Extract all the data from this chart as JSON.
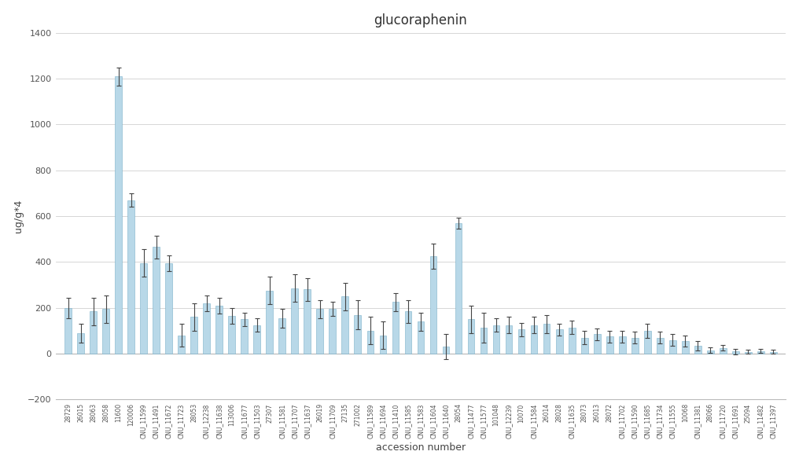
{
  "title": "glucoraphenin",
  "xlabel": "accession number",
  "ylabel": "ug/g*4",
  "ylim": [
    -200,
    1400
  ],
  "yticks": [
    -200,
    0,
    200,
    400,
    600,
    800,
    1000,
    1200,
    1400
  ],
  "bar_color": "#b8d8e8",
  "bar_edge_color": "#7ab0c8",
  "error_color": "#444444",
  "background_color": "#ffffff",
  "categories": [
    "28729",
    "26015",
    "28063",
    "28058",
    "11600",
    "120006",
    "CNU_11599",
    "CNU_11491",
    "CNU_11672",
    "CNU_11723",
    "28053",
    "CNU_12238",
    "CNU_11638",
    "113006",
    "CNU_11677",
    "CNU_11503",
    "27307",
    "CNU_11581",
    "CNU_11707",
    "CNU_11637",
    "26019",
    "CNU_11709",
    "27135",
    "271002",
    "CNU_11589",
    "CNU_11694",
    "CNU_11410",
    "CNU_11585",
    "CNU_11583",
    "CNU_11604",
    "CNU_11640",
    "28054",
    "CNU_11477",
    "CNU_11577",
    "101048",
    "CNU_12239",
    "10070",
    "CNU_11584",
    "26014",
    "28028",
    "CNU_11635",
    "28073",
    "26013",
    "28072",
    "CNU_11702",
    "CNU_11590",
    "CNU_11685",
    "CNU_11734",
    "CNU_11555",
    "10068",
    "CNU_11381",
    "28066",
    "CNU_11720",
    "CNU_11691",
    "25094",
    "CNU_11482",
    "CNU_11397"
  ],
  "values": [
    200,
    90,
    185,
    195,
    1210,
    670,
    395,
    465,
    395,
    80,
    160,
    220,
    210,
    165,
    150,
    125,
    275,
    155,
    285,
    280,
    195,
    195,
    250,
    170,
    100,
    80,
    225,
    185,
    140,
    425,
    30,
    570,
    150,
    115,
    125,
    125,
    105,
    125,
    130,
    105,
    115,
    70,
    85,
    75,
    75,
    70,
    100,
    70,
    60,
    55,
    35,
    15,
    25,
    10,
    8,
    12,
    8
  ],
  "errors": [
    45,
    40,
    60,
    60,
    40,
    30,
    60,
    50,
    35,
    50,
    60,
    35,
    35,
    35,
    30,
    30,
    60,
    40,
    60,
    50,
    40,
    30,
    60,
    65,
    60,
    60,
    40,
    50,
    40,
    55,
    55,
    25,
    60,
    65,
    30,
    35,
    30,
    35,
    40,
    25,
    30,
    30,
    25,
    25,
    25,
    25,
    30,
    25,
    25,
    25,
    20,
    12,
    12,
    12,
    8,
    8,
    8
  ]
}
